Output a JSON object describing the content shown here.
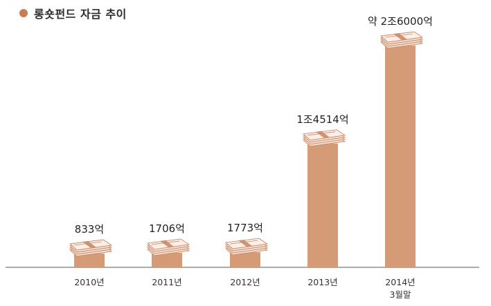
{
  "chart_data": {
    "type": "bar",
    "title": "롱숏펀드 자금 추이",
    "categories": [
      "2010년",
      "2011년",
      "2012년",
      "2013년",
      "2014년\n3월말"
    ],
    "values": [
      833,
      1706,
      1773,
      14514,
      26000
    ],
    "value_labels": [
      "833억",
      "1706억",
      "1773억",
      "1조4514억",
      "약 2조6000억"
    ],
    "unit": "억",
    "ylim": [
      0,
      26000
    ],
    "grid": false,
    "legend": "none"
  },
  "colors": {
    "bar": "#d59b77",
    "title_dot": "#c97d57",
    "money_band": "#c98a68",
    "money_paper": "#fbefe7",
    "axis": "#555555"
  },
  "icons": {
    "bar_top": "money-bundle-icon"
  }
}
